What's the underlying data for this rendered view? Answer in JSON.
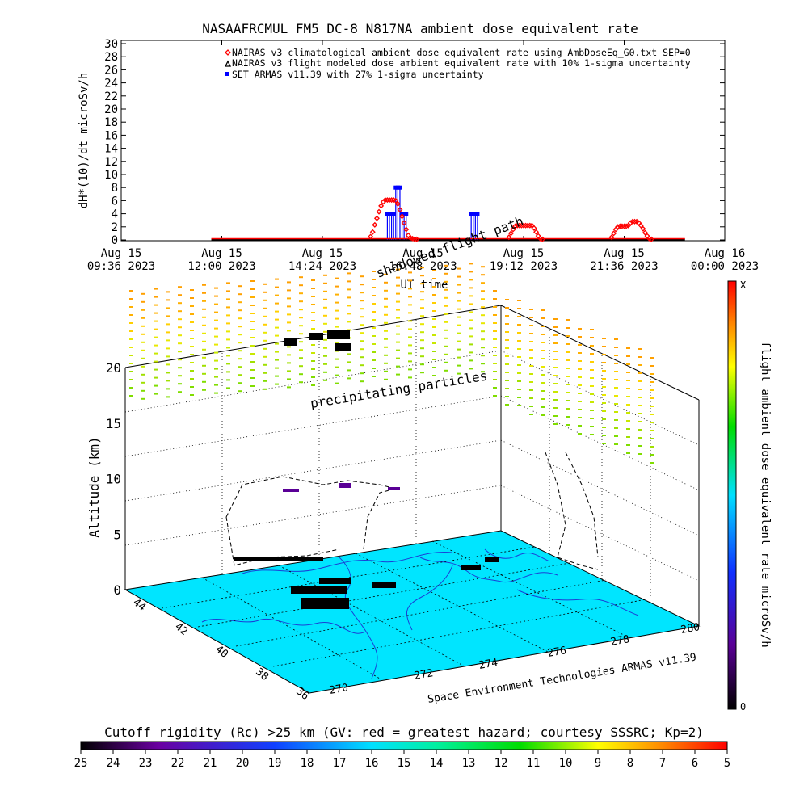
{
  "page": {
    "title": "NASAAFRCMUL_FM5 DC-8   N817NA ambient dose equivalent rate"
  },
  "chart_data": [
    {
      "type": "scatter",
      "title": "NASAAFRCMUL_FM5 DC-8   N817NA ambient dose equivalent rate",
      "xlabel": "UT time",
      "ylabel": "dH*(10)/dt microSv/h",
      "ylim": [
        0,
        30
      ],
      "y_ticks": [
        0,
        2,
        4,
        6,
        8,
        10,
        12,
        14,
        16,
        18,
        20,
        22,
        24,
        26,
        28,
        30
      ],
      "xlim_hours": [
        9.6,
        24.0
      ],
      "x_ticks": [
        {
          "hour": 9.6,
          "line1": "Aug 15",
          "line2": "09:36 2023"
        },
        {
          "hour": 12.0,
          "line1": "Aug 15",
          "line2": "12:00 2023"
        },
        {
          "hour": 14.4,
          "line1": "Aug 15",
          "line2": "14:24 2023"
        },
        {
          "hour": 16.8,
          "line1": "Aug 15",
          "line2": "16:48 2023"
        },
        {
          "hour": 19.2,
          "line1": "Aug 15",
          "line2": "19:12 2023"
        },
        {
          "hour": 21.6,
          "line1": "Aug 15",
          "line2": "21:36 2023"
        },
        {
          "hour": 24.0,
          "line1": "Aug 16",
          "line2": "00:00 2023"
        }
      ],
      "legend_position": "top-right",
      "series": [
        {
          "name": "NAIRAS v3 climatological ambient dose equivalent rate using AmbDoseEq_G0.txt SEP=0",
          "color": "#ff0000",
          "marker": "diamond",
          "x_hours": [
            15.55,
            15.6,
            15.65,
            15.7,
            15.75,
            15.8,
            15.85,
            15.9,
            15.95,
            16.0,
            16.05,
            16.1,
            16.15,
            16.2,
            16.25,
            16.3,
            16.35,
            16.4,
            16.45,
            16.5,
            16.55,
            16.6,
            16.65,
            18.85,
            18.9,
            18.95,
            19.0,
            19.05,
            19.1,
            19.15,
            19.2,
            19.25,
            19.3,
            19.35,
            19.4,
            19.45,
            19.5,
            19.55,
            19.6,
            19.65,
            21.3,
            21.35,
            21.4,
            21.45,
            21.5,
            21.55,
            21.6,
            21.65,
            21.7,
            21.75,
            21.8,
            21.85,
            21.9,
            21.95,
            22.0,
            22.05,
            22.1,
            22.15,
            22.2,
            22.25
          ],
          "y": [
            0.5,
            1.2,
            2.3,
            3.3,
            4.3,
            5.2,
            5.8,
            6.1,
            6.1,
            6.1,
            6.1,
            6.1,
            6.0,
            5.5,
            4.6,
            3.6,
            2.6,
            1.6,
            0.7,
            0.3,
            0.2,
            0.1,
            0.1,
            0.4,
            1.0,
            1.6,
            2.1,
            2.2,
            2.2,
            2.2,
            2.2,
            2.2,
            2.2,
            2.2,
            2.2,
            1.8,
            1.2,
            0.6,
            0.2,
            0.1,
            0.4,
            1.0,
            1.6,
            2.0,
            2.1,
            2.1,
            2.1,
            2.1,
            2.2,
            2.6,
            2.8,
            2.8,
            2.8,
            2.6,
            2.2,
            1.7,
            1.1,
            0.6,
            0.2,
            0.1
          ]
        },
        {
          "name": "NAIRAS v3 flight modeled dose ambient equivalent rate with 10% 1-sigma uncertainty",
          "color": "#000000",
          "marker": "triangle",
          "x_range_hours": [
            11.75,
            23.05
          ],
          "y_constant": 0
        },
        {
          "name": "SET ARMAS v11.39 with 27% 1-sigma uncertainty",
          "color": "#0000ff",
          "marker": "square",
          "x_hours": [
            15.95,
            16.0,
            16.05,
            16.1,
            16.15,
            16.2,
            16.25,
            16.3,
            16.35,
            16.4,
            17.95,
            18.0,
            18.05,
            18.1
          ],
          "y": [
            4,
            4,
            4,
            4,
            8,
            8,
            8,
            4,
            4,
            4,
            4,
            4,
            4,
            4
          ]
        }
      ]
    },
    {
      "type": "scatter",
      "subtype": "3d flight track over cutoff-rigidity map",
      "zlabel": "Altitude (km)",
      "z_ticks": [
        0,
        5,
        10,
        15,
        20
      ],
      "lat_ticks": [
        "36",
        "38",
        "40",
        "42",
        "44"
      ],
      "lon_ticks": [
        "270",
        "272",
        "274",
        "276",
        "278",
        "280"
      ],
      "annotations": [
        "shadowed flight path",
        "precipitating particles",
        "Space Environment Technologies ARMAS v11.39"
      ]
    },
    {
      "type": "colorbar",
      "label": "flight ambient dose equivalent rate microSv/h",
      "top_label": "X",
      "bottom_label": "0"
    },
    {
      "type": "colorbar",
      "label": "Cutoff rigidity (Rc) >25 km (GV: red = greatest hazard; courtesy SSSRC; Kp=2)",
      "tick_labels": [
        "25",
        "24",
        "23",
        "22",
        "21",
        "20",
        "19",
        "18",
        "17",
        "16",
        "15",
        "14",
        "13",
        "12",
        "11",
        "10",
        "9",
        "8",
        "7",
        "6",
        "5"
      ]
    }
  ]
}
